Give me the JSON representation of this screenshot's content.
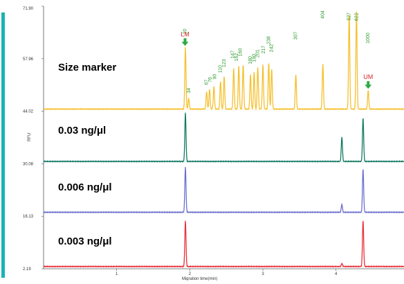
{
  "chart_data": {
    "type": "line",
    "title": "",
    "xlabel": "Migration time(min)",
    "ylabel": "RFU",
    "xlim": [
      0,
      4.93
    ],
    "ylim": [
      2.19,
      71.9
    ],
    "x_ticks": [
      "1",
      "2",
      "3",
      "4"
    ],
    "y_ticks": [
      "71.90",
      "57.96",
      "44.02",
      "30.08",
      "16.13",
      "2.19"
    ],
    "grid": false,
    "legend": "none",
    "series": [
      {
        "name": "Size marker",
        "color": "#f5c02e",
        "baseline": 44.6,
        "peaks": [
          {
            "x": 1.94,
            "y": 61.0
          },
          {
            "x": 1.985,
            "y": 47.4
          },
          {
            "x": 2.23,
            "y": 49.2
          },
          {
            "x": 2.27,
            "y": 49.8
          },
          {
            "x": 2.33,
            "y": 50.6
          },
          {
            "x": 2.42,
            "y": 52.0
          },
          {
            "x": 2.47,
            "y": 53.3
          },
          {
            "x": 2.6,
            "y": 55.3
          },
          {
            "x": 2.67,
            "y": 56.1
          },
          {
            "x": 2.73,
            "y": 56.5
          },
          {
            "x": 2.83,
            "y": 53.8
          },
          {
            "x": 2.88,
            "y": 54.5
          },
          {
            "x": 2.93,
            "y": 55.7
          },
          {
            "x": 3.0,
            "y": 56.5
          },
          {
            "x": 3.08,
            "y": 56.9
          },
          {
            "x": 3.12,
            "y": 55.3
          },
          {
            "x": 3.45,
            "y": 53.7
          },
          {
            "x": 3.82,
            "y": 56.5
          },
          {
            "x": 4.18,
            "y": 70.3
          },
          {
            "x": 4.28,
            "y": 70.7
          },
          {
            "x": 4.44,
            "y": 49.6
          }
        ]
      },
      {
        "name": "0.03 ng/μl",
        "color": "#117a62",
        "baseline": 30.7,
        "peaks": [
          {
            "x": 1.94,
            "y": 43.6
          },
          {
            "x": 4.08,
            "y": 37.2
          },
          {
            "x": 4.37,
            "y": 42.3
          }
        ]
      },
      {
        "name": "0.006 ng/μl",
        "color": "#6b6fcd",
        "baseline": 17.2,
        "peaks": [
          {
            "x": 1.94,
            "y": 29.3
          },
          {
            "x": 4.08,
            "y": 19.3
          },
          {
            "x": 4.37,
            "y": 28.8
          }
        ]
      },
      {
        "name": "0.003 ng/μl",
        "color": "#e8303a",
        "baseline": 2.8,
        "peaks": [
          {
            "x": 1.94,
            "y": 15.1
          },
          {
            "x": 4.08,
            "y": 3.6
          },
          {
            "x": 4.37,
            "y": 15.1
          }
        ]
      }
    ],
    "peak_labels": [
      {
        "text": "20",
        "x": 1.935,
        "y": 64.5
      },
      {
        "text": "34",
        "x": 1.985,
        "y": 48.8
      },
      {
        "text": "67",
        "x": 2.23,
        "y": 51.0
      },
      {
        "text": "76",
        "x": 2.28,
        "y": 51.7
      },
      {
        "text": "90",
        "x": 2.34,
        "y": 52.5
      },
      {
        "text": "110",
        "x": 2.42,
        "y": 54.2
      },
      {
        "text": "123",
        "x": 2.47,
        "y": 55.7
      },
      {
        "text": "147",
        "x": 2.59,
        "y": 58.0
      },
      {
        "text": "162",
        "x": 2.64,
        "y": 57.3
      },
      {
        "text": "160",
        "x": 2.69,
        "y": 58.6
      },
      {
        "text": "180",
        "x": 2.83,
        "y": 56.5
      },
      {
        "text": "190",
        "x": 2.88,
        "y": 57.1
      },
      {
        "text": "201",
        "x": 2.93,
        "y": 58.3
      },
      {
        "text": "217",
        "x": 3.01,
        "y": 59.3
      },
      {
        "text": "238",
        "x": 3.08,
        "y": 61.8
      },
      {
        "text": "242",
        "x": 3.12,
        "y": 59.7
      },
      {
        "text": "307",
        "x": 3.45,
        "y": 63.0
      },
      {
        "text": "404",
        "x": 3.82,
        "y": 68.6
      },
      {
        "text": "527",
        "x": 4.18,
        "y": 68.1
      },
      {
        "text": "622",
        "x": 4.28,
        "y": 68.0
      },
      {
        "text": "1000",
        "x": 4.44,
        "y": 62.0
      }
    ],
    "markers": [
      {
        "text": "LM",
        "x": 1.935,
        "y": 61.0
      },
      {
        "text": "UM",
        "x": 4.44,
        "y": 49.6
      }
    ]
  }
}
